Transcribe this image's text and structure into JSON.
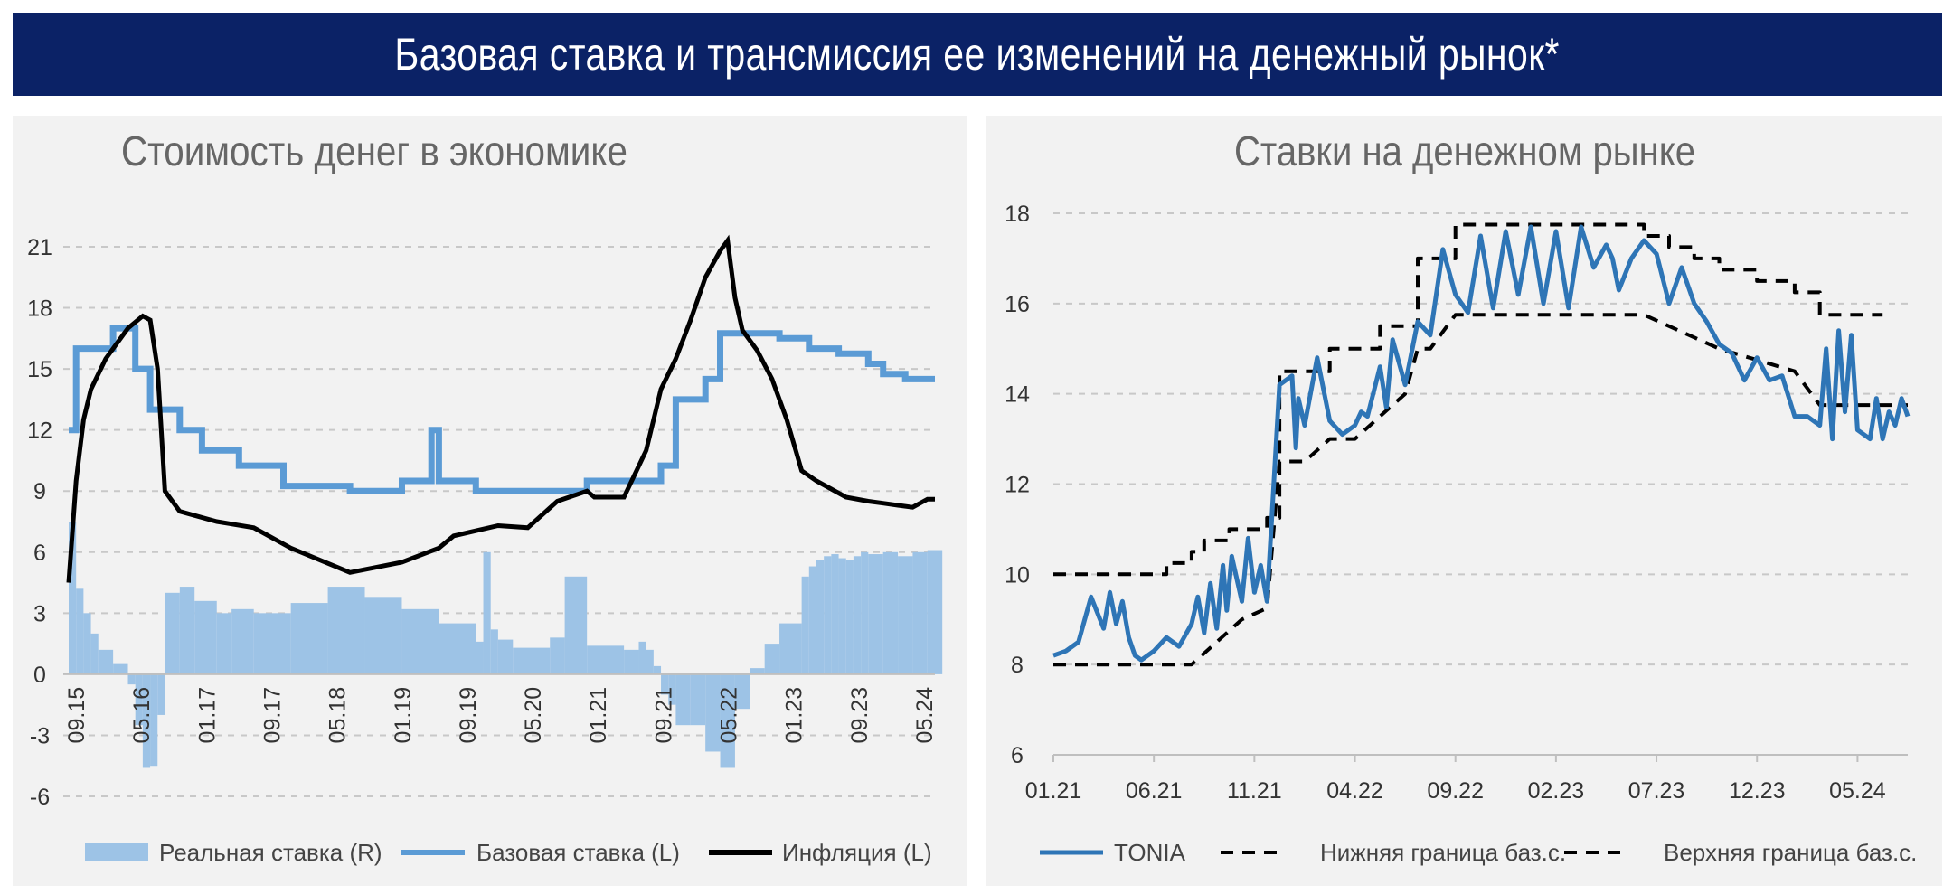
{
  "header": {
    "title": "Базовая ставка и трансмиссия ее изменений на денежный рынок*"
  },
  "colors": {
    "banner": "#0b2266",
    "panel": "#f2f2f2",
    "base_rate": "#5b9bd5",
    "real_rate": "#9dc3e6",
    "inflation": "#000000",
    "tonia": "#2e75b6",
    "band": "#000000"
  },
  "chart_data": [
    {
      "type": "line",
      "title": "Стоимость денег в экономике",
      "ylim": [
        -6,
        21
      ],
      "yticks": [
        "21",
        "18",
        "15",
        "12",
        "9",
        "6",
        "3",
        "0",
        "-3",
        "-6"
      ],
      "xticks": [
        "09.15",
        "05.16",
        "01.17",
        "09.17",
        "05.18",
        "01.19",
        "09.19",
        "05.20",
        "01.21",
        "09.21",
        "05.22",
        "01.23",
        "09.23",
        "05.24"
      ],
      "grid": true,
      "legend": "bottom",
      "series": [
        {
          "name": "Реальная ставка (R)",
          "style": "bar",
          "x": [
            0,
            1,
            2,
            3,
            4,
            6,
            8,
            9,
            10,
            11,
            12,
            13,
            15,
            17,
            20,
            22,
            25,
            30,
            35,
            40,
            45,
            50,
            55,
            56,
            57,
            58,
            60,
            65,
            67,
            70,
            75,
            77,
            78,
            79,
            80,
            81,
            82,
            84,
            86,
            88,
            90,
            92,
            94,
            96,
            99,
            100,
            101,
            102,
            103,
            104,
            105,
            106,
            107,
            108,
            110,
            112,
            114,
            116,
            117
          ],
          "values": [
            7.5,
            4.2,
            3.0,
            2.0,
            1.2,
            0.5,
            -0.5,
            -2.5,
            -4.6,
            -4.5,
            -2.0,
            4.0,
            4.3,
            3.6,
            3.0,
            3.2,
            3.0,
            3.5,
            4.3,
            3.8,
            3.2,
            2.5,
            1.6,
            6.0,
            2.2,
            1.7,
            1.3,
            1.8,
            4.8,
            1.4,
            1.2,
            1.6,
            1.2,
            0.4,
            -1.0,
            -1.5,
            -2.5,
            -2.5,
            -3.8,
            -4.6,
            -1.7,
            0.3,
            1.5,
            2.5,
            4.8,
            5.3,
            5.6,
            5.8,
            5.9,
            5.7,
            5.6,
            5.8,
            6.0,
            5.9,
            6.0,
            5.8,
            6.0,
            6.1,
            6.1
          ]
        },
        {
          "name": "Базовая ставка (L)",
          "style": "line",
          "x": [
            0,
            1,
            1,
            6,
            6,
            9,
            9,
            11,
            11,
            15,
            15,
            18,
            18,
            23,
            23,
            29,
            29,
            38,
            38,
            45,
            45,
            49,
            49,
            50,
            50,
            55,
            55,
            59,
            59,
            70,
            70,
            80,
            80,
            82,
            82,
            86,
            86,
            88,
            88,
            96,
            96,
            100,
            100,
            104,
            104,
            108,
            108,
            110,
            110,
            113,
            113,
            116,
            116,
            117
          ],
          "values": [
            12,
            12,
            16,
            16,
            17,
            17,
            15,
            15,
            13,
            13,
            12,
            12,
            11,
            11,
            10.25,
            10.25,
            9.25,
            9.25,
            9,
            9,
            9.5,
            9.5,
            12,
            12,
            9.5,
            9.5,
            9,
            9,
            9,
            9,
            9.5,
            9.5,
            10.25,
            10.25,
            13.5,
            13.5,
            14.5,
            14.5,
            16.75,
            16.75,
            16.5,
            16.5,
            16,
            16,
            15.75,
            15.75,
            15.25,
            15.25,
            14.75,
            14.75,
            14.5,
            14.5,
            14.5,
            14.5
          ]
        },
        {
          "name": "Инфляция (L)",
          "style": "line",
          "x": [
            0,
            1,
            2,
            3,
            5,
            8,
            10,
            11,
            12,
            13,
            15,
            20,
            25,
            30,
            38,
            45,
            50,
            52,
            58,
            62,
            66,
            70,
            71,
            75,
            78,
            80,
            82,
            84,
            86,
            88,
            89,
            90,
            91,
            93,
            95,
            97,
            99,
            101,
            103,
            105,
            108,
            110,
            112,
            114,
            116,
            117
          ],
          "values": [
            4.5,
            9.5,
            12.5,
            14,
            15.5,
            17,
            17.6,
            17.4,
            15,
            9,
            8,
            7.5,
            7.2,
            6.2,
            5,
            5.5,
            6.2,
            6.8,
            7.3,
            7.2,
            8.5,
            9,
            8.7,
            8.7,
            11,
            14,
            15.5,
            17.4,
            19.5,
            20.8,
            21.3,
            18.5,
            16.9,
            15.9,
            14.5,
            12.5,
            10,
            9.5,
            9.1,
            8.7,
            8.5,
            8.4,
            8.3,
            8.2,
            8.6,
            8.6
          ]
        }
      ]
    },
    {
      "type": "line",
      "title": "Ставки на денежном рынке",
      "ylim": [
        6,
        18
      ],
      "yticks": [
        "18",
        "16",
        "14",
        "12",
        "10",
        "8",
        "6"
      ],
      "xticks": [
        "01.21",
        "06.21",
        "11.21",
        "04.22",
        "09.22",
        "02.23",
        "07.23",
        "12.23",
        "05.24"
      ],
      "grid": true,
      "legend": "bottom",
      "series": [
        {
          "name": "TONIA",
          "style": "line",
          "x": [
            0,
            1,
            2,
            3,
            4,
            4.5,
            5,
            5.5,
            6,
            6.5,
            7,
            8,
            9,
            10,
            11,
            11.5,
            12,
            12.5,
            13,
            13.5,
            13.8,
            14.2,
            15,
            15.5,
            16,
            16.5,
            17,
            18,
            19,
            19.3,
            19.5,
            20,
            21,
            22,
            23,
            24,
            24.5,
            25,
            26,
            26.5,
            27,
            28,
            29,
            30,
            31,
            32,
            33,
            34,
            35,
            36,
            37,
            38,
            39,
            40,
            41,
            42,
            43,
            44,
            44.5,
            45,
            46,
            47,
            48,
            49,
            50,
            51,
            52,
            53,
            54,
            55,
            56,
            57,
            58,
            59,
            60,
            61,
            61.5,
            62,
            62.5,
            63,
            63.5,
            64,
            65,
            65.5,
            66,
            66.5,
            67,
            67.5,
            68
          ],
          "values": [
            8.2,
            8.3,
            8.5,
            9.5,
            8.8,
            9.6,
            8.9,
            9.4,
            8.6,
            8.2,
            8.1,
            8.3,
            8.6,
            8.4,
            8.9,
            9.5,
            8.7,
            9.8,
            8.8,
            10.2,
            9.2,
            10.4,
            9.4,
            10.8,
            9.6,
            10.2,
            9.4,
            14.2,
            14.4,
            12.8,
            13.9,
            13.3,
            14.8,
            13.4,
            13.1,
            13.3,
            13.6,
            13.5,
            14.6,
            13.7,
            15.2,
            14.2,
            15.6,
            15.3,
            17.2,
            16.2,
            15.8,
            17.5,
            15.9,
            17.6,
            16.2,
            17.7,
            16.0,
            17.6,
            15.9,
            17.7,
            16.8,
            17.3,
            17.0,
            16.3,
            17.0,
            17.4,
            17.1,
            16.0,
            16.8,
            16.0,
            15.6,
            15.1,
            14.9,
            14.3,
            14.8,
            14.3,
            14.4,
            13.5,
            13.5,
            13.3,
            15.0,
            13.0,
            15.4,
            13.6,
            15.3,
            13.2,
            13.0,
            13.9,
            13.0,
            13.6,
            13.3,
            13.9,
            13.5
          ]
        },
        {
          "name": "Нижняя граница баз.с.",
          "style": "dashed",
          "x": [
            0,
            4,
            4,
            5,
            5,
            6,
            6,
            7,
            7,
            8,
            8,
            9,
            9,
            10,
            10,
            11,
            11,
            12,
            12,
            13,
            13,
            14,
            14,
            15,
            15,
            17,
            17,
            18,
            18,
            20,
            20,
            22,
            22,
            24,
            24,
            26,
            26,
            28,
            28,
            29,
            29,
            30,
            30,
            32,
            32,
            40,
            40,
            47,
            47,
            49,
            49,
            51,
            51,
            53,
            53,
            56,
            56,
            59,
            59,
            61,
            61,
            68
          ],
          "values": [
            8,
            8,
            8,
            8,
            8,
            8,
            8,
            8,
            8,
            8,
            8,
            8,
            8,
            8,
            8,
            8,
            8,
            8.25,
            8.25,
            8.5,
            8.5,
            8.75,
            8.75,
            9,
            9,
            9.25,
            9.25,
            12.5,
            12.5,
            12.5,
            12.5,
            13,
            13,
            13,
            13,
            13.5,
            13.5,
            14,
            14,
            15,
            15,
            15,
            15,
            15.75,
            15.75,
            15.75,
            15.75,
            15.75,
            15.75,
            15.5,
            15.5,
            15.25,
            15.25,
            15,
            15,
            14.75,
            14.75,
            14.5,
            14.5,
            13.75,
            13.75,
            13.75
          ]
        },
        {
          "name": "Верхняя граница баз.с.",
          "style": "dashed",
          "x": [
            0,
            9,
            9,
            11,
            11,
            12,
            12,
            13,
            13,
            14,
            14,
            15,
            15,
            17,
            17,
            18,
            18,
            20,
            20,
            22,
            22,
            24,
            24,
            26,
            26,
            28,
            28,
            29,
            29,
            30,
            30,
            32,
            32,
            40,
            40,
            47,
            47,
            49,
            49,
            51,
            51,
            53,
            53,
            56,
            56,
            59,
            59,
            61,
            61,
            66
          ],
          "values": [
            10,
            10,
            10.25,
            10.25,
            10.5,
            10.5,
            10.75,
            10.75,
            10.75,
            10.75,
            11,
            11,
            11,
            11,
            11.25,
            11.25,
            14.5,
            14.5,
            14.5,
            14.5,
            15,
            15,
            15,
            15,
            15.5,
            15.5,
            15.5,
            15.5,
            17,
            17,
            17,
            17,
            17.75,
            17.75,
            17.75,
            17.75,
            17.5,
            17.5,
            17.25,
            17.25,
            17,
            17,
            16.75,
            16.75,
            16.5,
            16.5,
            16.25,
            16.25,
            15.75,
            15.75
          ]
        }
      ]
    }
  ]
}
